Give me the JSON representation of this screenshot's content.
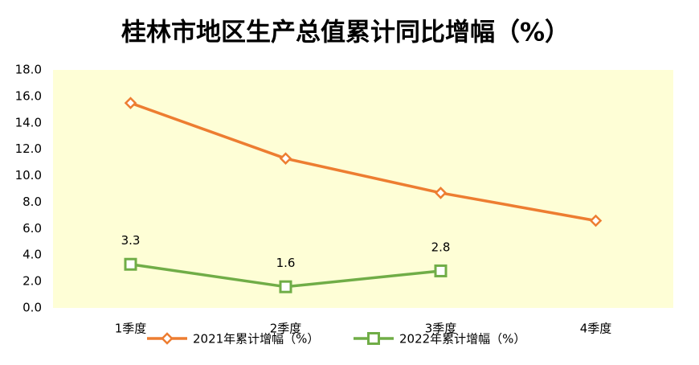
{
  "chart_data": {
    "type": "line",
    "title": "桂林市地区生产总值累计同比增幅（%）",
    "categories": [
      "1季度",
      "2季度",
      "3季度",
      "4季度"
    ],
    "series": [
      {
        "name": "2021年累计增幅（%）",
        "color": "#ed7d31",
        "marker": "diamond",
        "values": [
          15.5,
          11.3,
          8.7,
          6.6
        ]
      },
      {
        "name": "2022年累计增幅（%）",
        "color": "#70ad47",
        "marker": "square",
        "values": [
          3.3,
          1.6,
          2.8,
          null
        ],
        "data_labels": true
      }
    ],
    "ylim": [
      0,
      18
    ],
    "yticks": [
      {
        "value": 0,
        "label": "0.0"
      },
      {
        "value": 2,
        "label": "2.0"
      },
      {
        "value": 4,
        "label": "4.0"
      },
      {
        "value": 6,
        "label": "6.0"
      },
      {
        "value": 8,
        "label": "8.0"
      },
      {
        "value": 10,
        "label": "10.0"
      },
      {
        "value": 12,
        "label": "12.0"
      },
      {
        "value": 14,
        "label": "14.0"
      },
      {
        "value": 16,
        "label": "16.0"
      },
      {
        "value": 18,
        "label": "18.0"
      }
    ],
    "plot_background": "#fefed6",
    "grid": false,
    "legend": "bottom"
  }
}
